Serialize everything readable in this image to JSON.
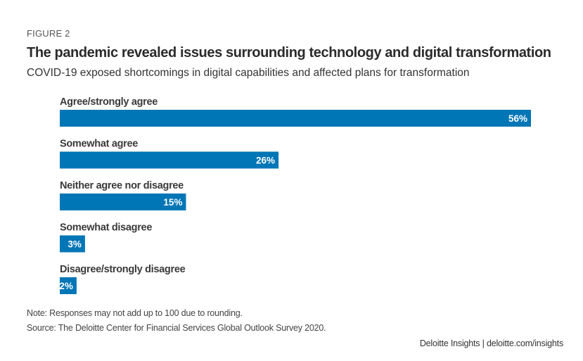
{
  "figure_label": "FIGURE 2",
  "title": "The pandemic revealed issues surrounding technology and digital transformation",
  "subtitle": "COVID-19 exposed shortcomings in digital capabilities and affected plans for transformation",
  "chart_data": {
    "type": "bar",
    "orientation": "horizontal",
    "categories": [
      "Agree/strongly agree",
      "Somewhat agree",
      "Neither agree nor disagree",
      "Somewhat disagree",
      "Disagree/strongly disagree"
    ],
    "values": [
      56,
      26,
      15,
      3,
      2
    ],
    "data_labels": [
      "56%",
      "26%",
      "15%",
      "3%",
      "2%"
    ],
    "unit": "%",
    "xlim": [
      0,
      56
    ],
    "grid": false,
    "legend": "none",
    "bar_color": "#0076b6"
  },
  "note": "Note: Responses may not add up to 100 due to rounding.",
  "source": "Source: The Deloitte Center for Financial Services Global Outlook Survey 2020.",
  "credit": "Deloitte Insights | deloitte.com/insights"
}
